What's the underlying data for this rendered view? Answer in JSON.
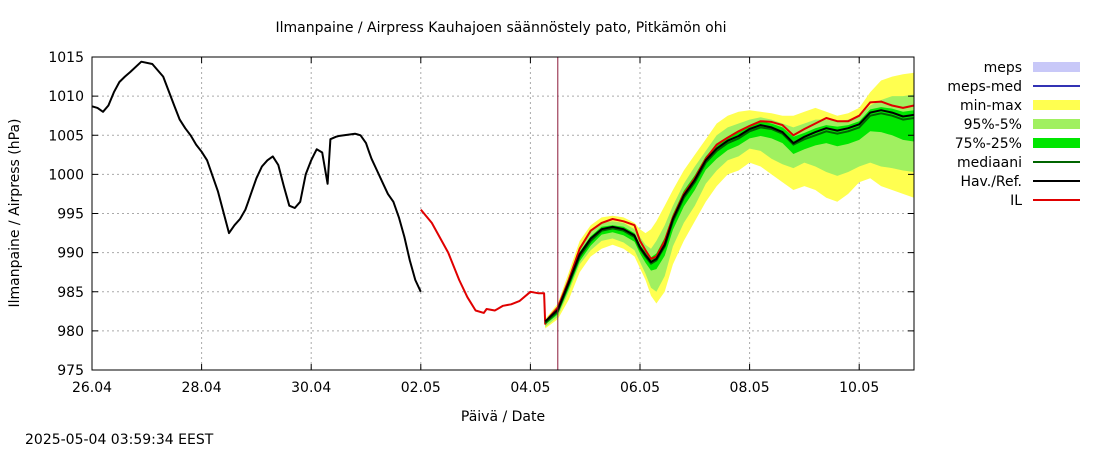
{
  "chart_data": {
    "type": "line",
    "title": "Ilmanpaine / Airpress Kauhajoen säännöstely pato, Pitkämön ohi",
    "xlabel": "Päivä / Date",
    "ylabel": "Ilmanpaine / Airpress (hPa)",
    "timestamp": "2025-05-04 03:59:34 EEST",
    "x_ticks": [
      "26.04",
      "28.04",
      "30.04",
      "02.05",
      "04.05",
      "06.05",
      "08.05",
      "10.05"
    ],
    "x_tick_days": [
      0,
      2,
      4,
      6,
      8,
      10,
      12,
      14
    ],
    "xlim_days": [
      0,
      15
    ],
    "x_origin_date": "26.04",
    "ylim": [
      975,
      1015
    ],
    "y_ticks": [
      975,
      980,
      985,
      990,
      995,
      1000,
      1005,
      1010,
      1015
    ],
    "grid": true,
    "now_marker_day": 8.5,
    "legend": [
      {
        "label": "meps",
        "kind": "box",
        "color": "#c8c8f8"
      },
      {
        "label": "meps-med",
        "kind": "line",
        "color": "#3232b4"
      },
      {
        "label": "min-max",
        "kind": "box",
        "color": "#ffff50"
      },
      {
        "label": "95%-5%",
        "kind": "box",
        "color": "#a0f060"
      },
      {
        "label": "75%-25%",
        "kind": "box",
        "color": "#00e600"
      },
      {
        "label": "mediaani",
        "kind": "line",
        "color": "#006400"
      },
      {
        "label": "Hav./Ref.",
        "kind": "line",
        "color": "#000000"
      },
      {
        "label": "IL",
        "kind": "line",
        "color": "#e00000"
      }
    ],
    "series": [
      {
        "name": "Hav./Ref.",
        "color": "#000000",
        "x": [
          0,
          0.1,
          0.2,
          0.3,
          0.4,
          0.5,
          0.6,
          0.7,
          0.9,
          1.1,
          1.3,
          1.5,
          1.6,
          1.7,
          1.8,
          1.9,
          2.0,
          2.1,
          2.3,
          2.5,
          2.6,
          2.7,
          2.8,
          2.85,
          2.9,
          3.0,
          3.1,
          3.2,
          3.3,
          3.4,
          3.5,
          3.6,
          3.7,
          3.8,
          3.9,
          4.0,
          4.05,
          4.1,
          4.2,
          4.3,
          4.35,
          4.45,
          4.5,
          4.6,
          4.7,
          4.8,
          4.85,
          4.9,
          4.92,
          5.0,
          5.05,
          5.1,
          5.2,
          5.3,
          5.4,
          5.5,
          5.6,
          5.7,
          5.8,
          5.9,
          6.0
        ],
        "y": [
          1008.7,
          1008.5,
          1008.0,
          1008.8,
          1010.5,
          1011.8,
          1012.5,
          1013.1,
          1014.4,
          1014.1,
          1012.5,
          1008.8,
          1007.0,
          1005.9,
          1005.0,
          1003.8,
          1002.9,
          1001.8,
          997.8,
          992.5,
          993.5,
          994.3,
          995.5,
          996.5,
          997.5,
          999.5,
          1001.0,
          1001.8,
          1002.3,
          1001.2,
          998.5,
          996.0,
          995.7,
          996.5,
          1000.0,
          1001.8,
          1002.5,
          1003.2,
          1002.8,
          998.8,
          1004.5,
          1004.8,
          1004.9,
          1005.0,
          1005.1,
          1005.2,
          1005.1,
          1005.0,
          1004.8,
          1004.0,
          1003.0,
          1002.0,
          1000.5,
          999.0,
          997.5,
          996.5,
          994.5,
          992.0,
          989.0,
          986.5,
          985.0
        ]
      },
      {
        "name": "IL",
        "color": "#e00000",
        "x": [
          6.0,
          6.2,
          6.5,
          6.7,
          6.85,
          7.0,
          7.15,
          7.2,
          7.35,
          7.4,
          7.5,
          7.65,
          7.8,
          8.0,
          8.15,
          8.25,
          8.27,
          8.35,
          8.5,
          8.7,
          8.9,
          9.1,
          9.3,
          9.5,
          9.7,
          9.9,
          10.0,
          10.1,
          10.2,
          10.3,
          10.45,
          10.6,
          10.8,
          11.0,
          11.2,
          11.4,
          11.6,
          11.8,
          12.0,
          12.2,
          12.4,
          12.6,
          12.8,
          13.0,
          13.2,
          13.4,
          13.6,
          13.8,
          14.0,
          14.2,
          14.4,
          14.6,
          14.8,
          15.0
        ],
        "y": [
          995.5,
          993.8,
          990.0,
          986.5,
          984.3,
          982.6,
          982.3,
          982.8,
          982.6,
          982.8,
          983.2,
          983.4,
          983.8,
          985.0,
          984.8,
          984.8,
          980.9,
          981.8,
          983.0,
          986.5,
          990.5,
          992.8,
          993.8,
          994.3,
          994.0,
          993.5,
          991.5,
          990.3,
          989.2,
          989.5,
          991.5,
          994.5,
          997.5,
          999.5,
          1002.0,
          1003.8,
          1004.7,
          1005.5,
          1006.2,
          1006.8,
          1006.7,
          1006.3,
          1005.0,
          1005.8,
          1006.5,
          1007.2,
          1006.8,
          1006.8,
          1007.5,
          1009.2,
          1009.3,
          1008.8,
          1008.5,
          1008.8
        ]
      },
      {
        "name": "mediaani",
        "color": "#006400",
        "x": [
          8.27,
          8.5,
          8.7,
          8.9,
          9.1,
          9.3,
          9.5,
          9.7,
          9.9,
          10.0,
          10.1,
          10.2,
          10.3,
          10.45,
          10.6,
          10.8,
          11.0,
          11.2,
          11.4,
          11.6,
          11.8,
          12.0,
          12.2,
          12.4,
          12.6,
          12.8,
          13.0,
          13.2,
          13.4,
          13.6,
          13.8,
          14.0,
          14.2,
          14.4,
          14.6,
          14.8,
          15.0
        ],
        "y": [
          981.0,
          982.5,
          986.0,
          989.5,
          991.5,
          992.8,
          993.1,
          992.8,
          992.0,
          990.5,
          989.5,
          988.6,
          989.0,
          990.8,
          994.0,
          997.0,
          999.0,
          1001.5,
          1003.0,
          1004.0,
          1004.6,
          1005.5,
          1006.0,
          1005.8,
          1005.2,
          1003.8,
          1004.5,
          1005.0,
          1005.5,
          1005.2,
          1005.5,
          1006.0,
          1007.5,
          1007.8,
          1007.5,
          1007.0,
          1007.2
        ]
      },
      {
        "name": "Hav./Ref.",
        "color": "#000000",
        "x": [
          8.27,
          8.5,
          8.7,
          8.9,
          9.1,
          9.3,
          9.5,
          9.7,
          9.9,
          10.0,
          10.1,
          10.2,
          10.3,
          10.45,
          10.6,
          10.8,
          11.0,
          11.2,
          11.4,
          11.6,
          11.8,
          12.0,
          12.2,
          12.4,
          12.6,
          12.8,
          13.0,
          13.2,
          13.4,
          13.6,
          13.8,
          14.0,
          14.2,
          14.4,
          14.6,
          14.8,
          15.0
        ],
        "y": [
          981.2,
          982.7,
          986.2,
          989.8,
          991.8,
          993.0,
          993.3,
          993.0,
          992.2,
          990.7,
          989.7,
          988.8,
          989.2,
          991.0,
          994.3,
          997.3,
          999.3,
          1001.8,
          1003.3,
          1004.3,
          1004.9,
          1005.8,
          1006.3,
          1006.0,
          1005.4,
          1004.0,
          1004.8,
          1005.4,
          1005.9,
          1005.6,
          1005.9,
          1006.4,
          1007.9,
          1008.2,
          1007.9,
          1007.4,
          1007.6
        ]
      }
    ],
    "bands": [
      {
        "name": "min-max",
        "color": "#ffff50",
        "x": [
          8.27,
          8.5,
          8.7,
          8.9,
          9.1,
          9.3,
          9.5,
          9.7,
          9.9,
          10.0,
          10.1,
          10.2,
          10.3,
          10.45,
          10.6,
          10.8,
          11.0,
          11.2,
          11.4,
          11.6,
          11.8,
          12.0,
          12.2,
          12.4,
          12.6,
          12.8,
          13.0,
          13.2,
          13.4,
          13.6,
          13.8,
          14.0,
          14.2,
          14.4,
          14.6,
          14.8,
          15.0
        ],
        "upper": [
          981.5,
          983.5,
          987.5,
          991.5,
          993.5,
          994.5,
          994.7,
          994.5,
          993.8,
          993.0,
          992.5,
          993.0,
          994.0,
          996.0,
          998.0,
          1000.5,
          1002.5,
          1004.5,
          1006.5,
          1007.5,
          1008.0,
          1008.2,
          1008.0,
          1007.8,
          1007.5,
          1007.5,
          1008.0,
          1008.5,
          1008.0,
          1007.5,
          1007.8,
          1008.5,
          1010.5,
          1012.0,
          1012.5,
          1012.8,
          1013.0
        ],
        "lower": [
          980.3,
          981.5,
          984.0,
          987.5,
          989.5,
          990.5,
          991.0,
          990.5,
          989.5,
          988.0,
          986.5,
          984.5,
          983.5,
          985.0,
          988.5,
          991.5,
          994.0,
          996.5,
          998.5,
          1000.0,
          1000.5,
          1001.5,
          1001.0,
          1000.0,
          999.0,
          998.0,
          998.5,
          998.0,
          997.0,
          996.5,
          997.5,
          999.0,
          999.5,
          998.5,
          998.0,
          997.5,
          997.0
        ]
      },
      {
        "name": "95%-5%",
        "color": "#a0f060",
        "x": [
          8.27,
          8.5,
          8.7,
          8.9,
          9.1,
          9.3,
          9.5,
          9.7,
          9.9,
          10.0,
          10.1,
          10.2,
          10.3,
          10.45,
          10.6,
          10.8,
          11.0,
          11.2,
          11.4,
          11.6,
          11.8,
          12.0,
          12.2,
          12.4,
          12.6,
          12.8,
          13.0,
          13.2,
          13.4,
          13.6,
          13.8,
          14.0,
          14.2,
          14.4,
          14.6,
          14.8,
          15.0
        ],
        "upper": [
          981.4,
          983.2,
          987.0,
          990.8,
          992.8,
          993.8,
          994.0,
          993.8,
          993.0,
          992.0,
          991.0,
          990.5,
          991.5,
          993.5,
          996.0,
          998.8,
          1001.0,
          1003.0,
          1005.0,
          1006.0,
          1006.5,
          1007.0,
          1007.3,
          1007.0,
          1006.5,
          1006.0,
          1006.5,
          1007.0,
          1007.0,
          1006.8,
          1007.0,
          1007.5,
          1008.8,
          1009.5,
          1010.0,
          1010.0,
          1010.2
        ],
        "lower": [
          980.5,
          981.8,
          985.0,
          988.5,
          990.3,
          991.5,
          991.8,
          991.3,
          990.3,
          988.8,
          987.3,
          985.5,
          985.0,
          987.0,
          990.8,
          993.8,
          996.0,
          998.8,
          1000.5,
          1001.8,
          1002.3,
          1003.3,
          1003.0,
          1002.0,
          1001.3,
          1000.8,
          1001.5,
          1001.0,
          1000.3,
          999.8,
          1000.3,
          1001.0,
          1001.5,
          1001.0,
          1000.8,
          1000.5,
          1000.3
        ]
      },
      {
        "name": "75%-25%",
        "color": "#00e600",
        "x": [
          8.27,
          8.5,
          8.7,
          8.9,
          9.1,
          9.3,
          9.5,
          9.7,
          9.9,
          10.0,
          10.1,
          10.2,
          10.3,
          10.45,
          10.6,
          10.8,
          11.0,
          11.2,
          11.4,
          11.6,
          11.8,
          12.0,
          12.2,
          12.4,
          12.6,
          12.8,
          13.0,
          13.2,
          13.4,
          13.6,
          13.8,
          14.0,
          14.2,
          14.4,
          14.6,
          14.8,
          15.0
        ],
        "upper": [
          981.2,
          982.9,
          986.6,
          990.1,
          992.1,
          993.3,
          993.5,
          993.3,
          992.5,
          991.0,
          990.1,
          989.4,
          989.9,
          991.9,
          994.9,
          997.9,
          999.9,
          1002.3,
          1003.8,
          1004.8,
          1005.4,
          1006.3,
          1006.8,
          1006.5,
          1006.0,
          1004.8,
          1005.3,
          1005.9,
          1006.3,
          1006.1,
          1006.3,
          1006.8,
          1008.3,
          1008.6,
          1008.4,
          1008.0,
          1008.2
        ],
        "lower": [
          980.8,
          982.1,
          985.4,
          988.9,
          990.9,
          992.3,
          992.6,
          992.2,
          991.4,
          989.9,
          988.7,
          987.7,
          987.9,
          989.6,
          992.9,
          995.9,
          998.0,
          1000.6,
          1002.0,
          1003.1,
          1003.7,
          1004.6,
          1004.9,
          1004.6,
          1004.0,
          1002.6,
          1003.2,
          1003.7,
          1004.0,
          1003.6,
          1003.9,
          1004.4,
          1005.5,
          1005.4,
          1005.0,
          1004.4,
          1004.2
        ]
      }
    ]
  }
}
